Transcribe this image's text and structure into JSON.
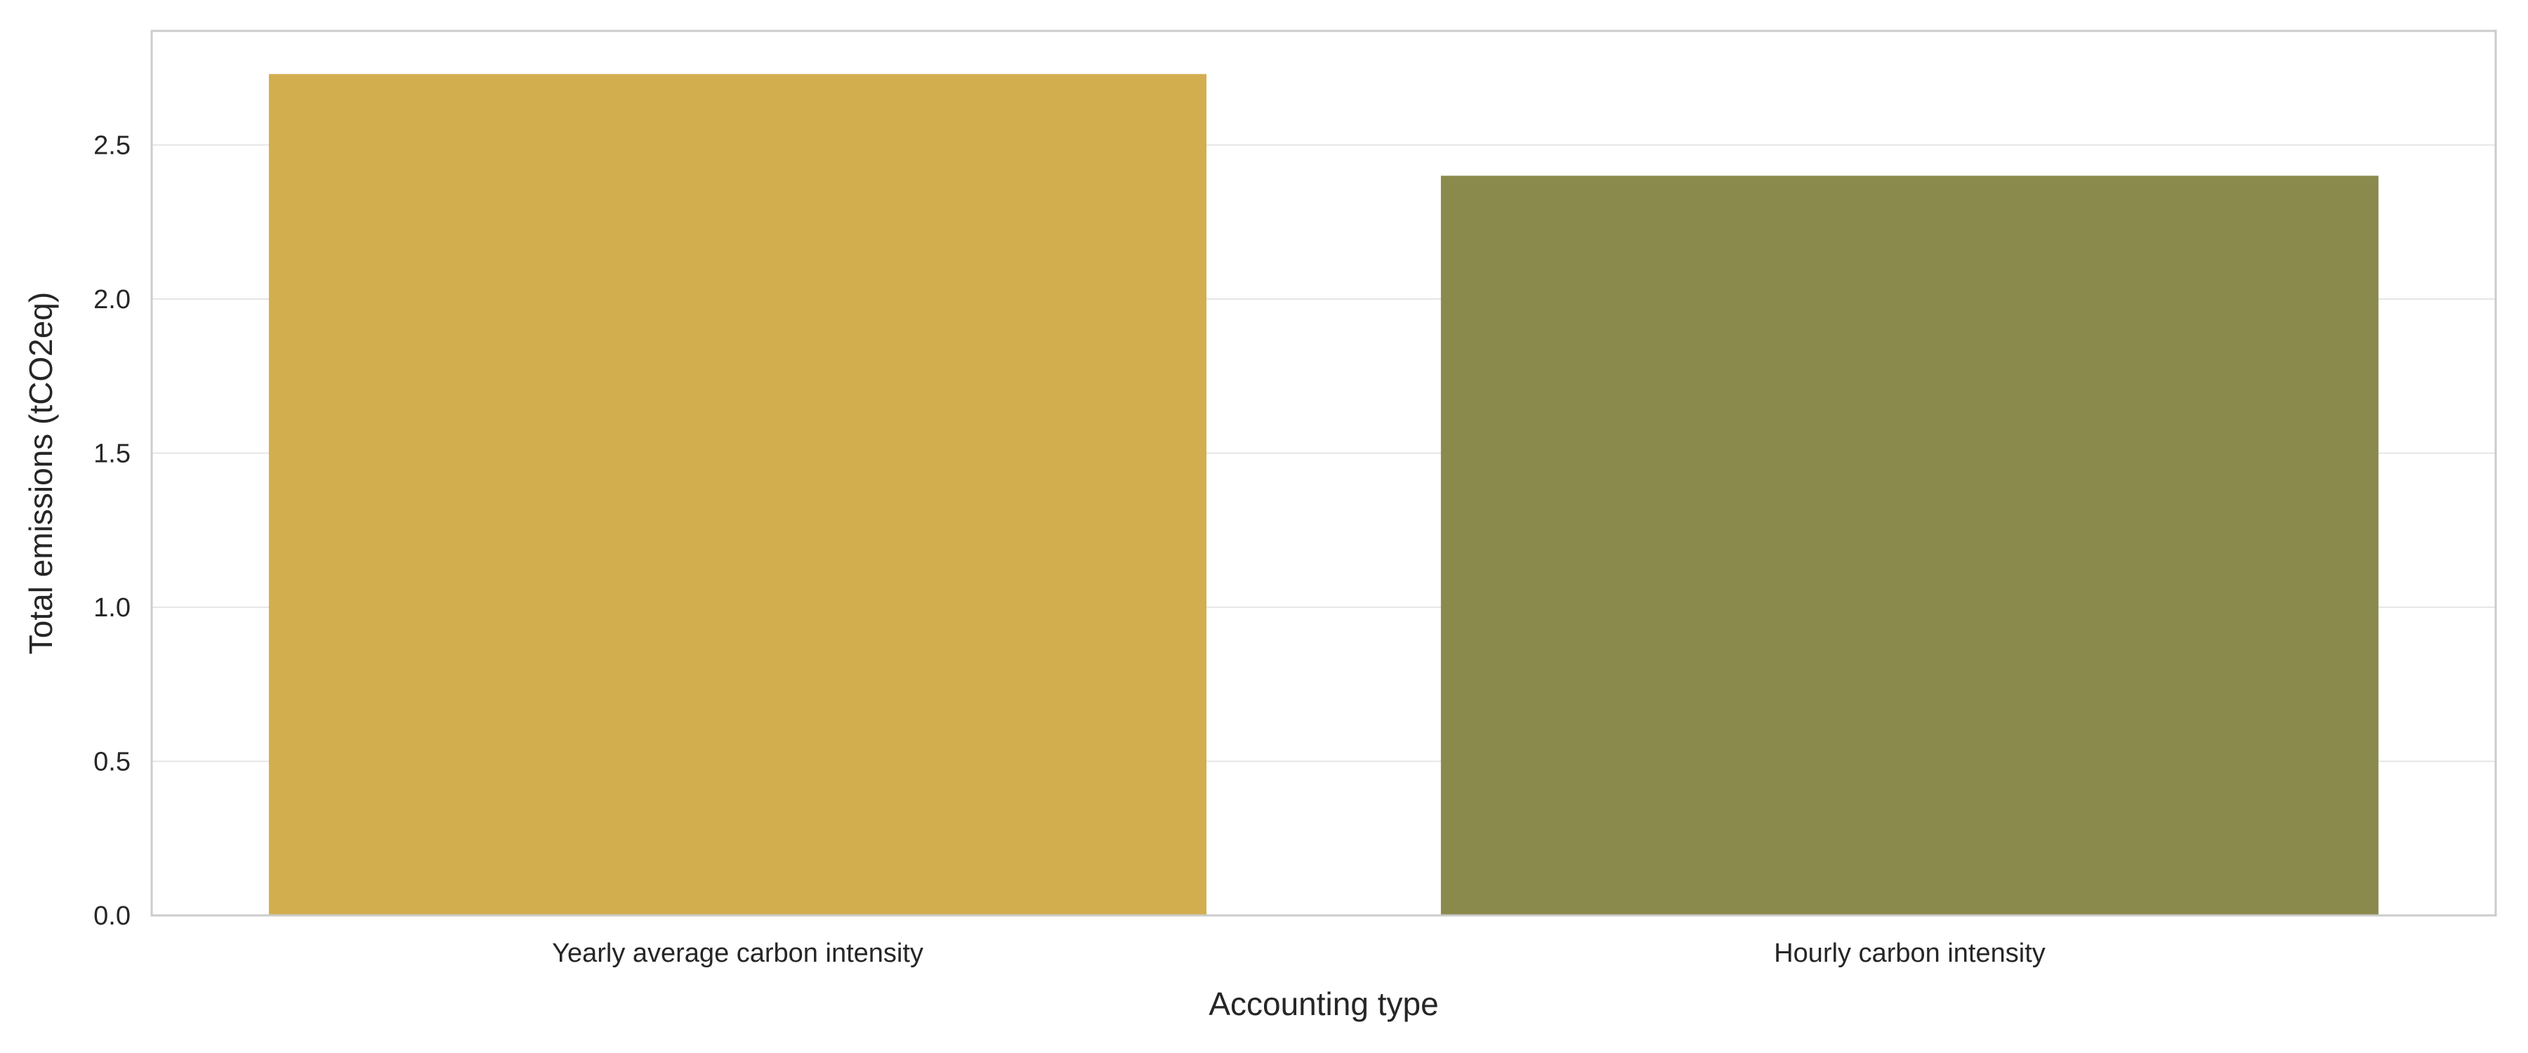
{
  "chart_data": {
    "type": "bar",
    "categories": [
      "Yearly average carbon intensity",
      "Hourly carbon intensity"
    ],
    "values": [
      2.73,
      2.4
    ],
    "colors": [
      "#d3ae4f",
      "#8b8a4d"
    ],
    "xlabel": "Accounting type",
    "ylabel": "Total emissions (tCO2eq)",
    "ylim": [
      0,
      2.87
    ],
    "yticks": [
      0.0,
      0.5,
      1.0,
      1.5,
      2.0,
      2.5
    ],
    "ytick_labels": [
      "0.0",
      "0.5",
      "1.0",
      "1.5",
      "2.0",
      "2.5"
    ],
    "grid": "horizontal",
    "legend": "none"
  }
}
